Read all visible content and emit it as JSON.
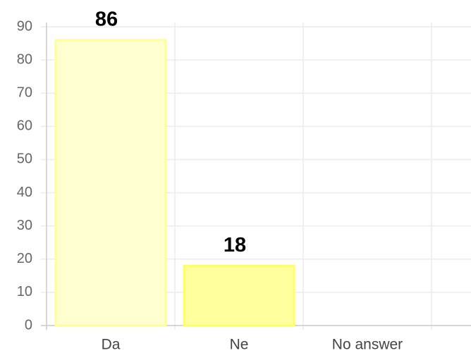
{
  "chart_data": {
    "type": "bar",
    "categories": [
      "Da",
      "Ne",
      "No answer"
    ],
    "values": [
      86,
      18,
      0
    ],
    "colors": [
      "#ffffd0",
      "#ffff9e",
      "#7030a0"
    ],
    "border_colors": [
      "#ffff99",
      "#ffff66",
      "#7030a0"
    ],
    "ylim": [
      0,
      90
    ],
    "yticks": [
      0,
      10,
      20,
      30,
      40,
      50,
      60,
      70,
      80,
      90
    ],
    "grid": true
  }
}
